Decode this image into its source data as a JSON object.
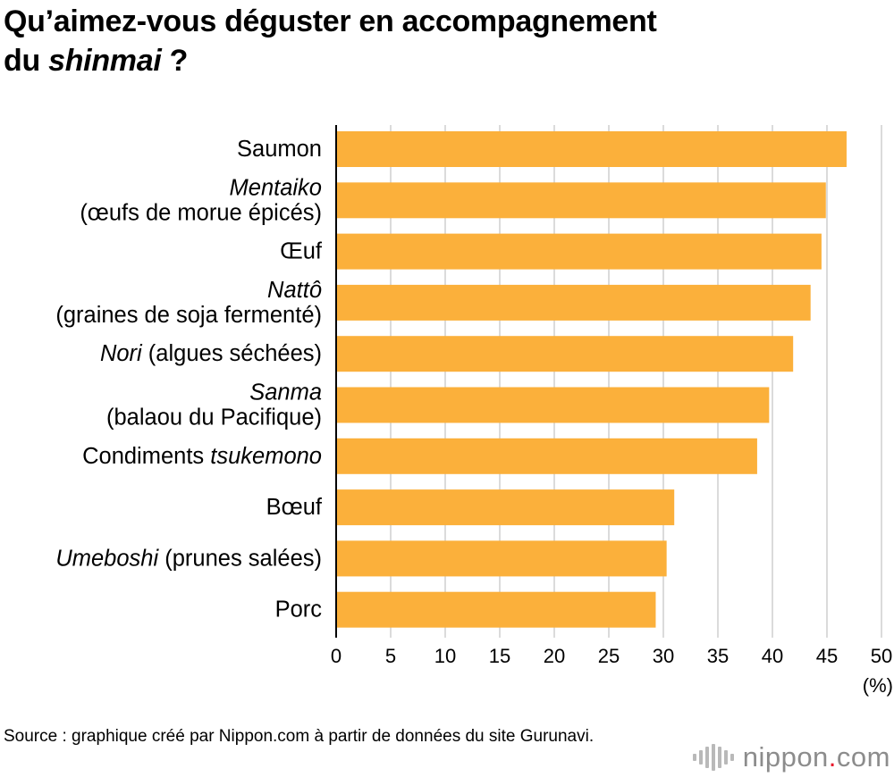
{
  "title": {
    "line1": "Qu’aimez-vous déguster en accompagnement",
    "line2_prefix": "du ",
    "line2_italic": "shinmai",
    "line2_suffix": " ?"
  },
  "chart_data": {
    "type": "bar",
    "orientation": "horizontal",
    "categories": [
      [
        {
          "t": "Saumon",
          "i": false
        }
      ],
      [
        {
          "t": "Mentaiko",
          "i": true
        },
        {
          "t": "\n(œufs de morue épicés)",
          "i": false
        }
      ],
      [
        {
          "t": "Œuf",
          "i": false
        }
      ],
      [
        {
          "t": "Nattô",
          "i": true
        },
        {
          "t": "\n(graines de soja fermenté)",
          "i": false
        }
      ],
      [
        {
          "t": "Nori",
          "i": true
        },
        {
          "t": " (algues séchées)",
          "i": false
        }
      ],
      [
        {
          "t": "Sanma",
          "i": true
        },
        {
          "t": "\n(balaou du Pacifique)",
          "i": false
        }
      ],
      [
        {
          "t": "Condiments ",
          "i": false
        },
        {
          "t": "tsukemono",
          "i": true
        }
      ],
      [
        {
          "t": "Bœuf",
          "i": false
        }
      ],
      [
        {
          "t": "Umeboshi",
          "i": true
        },
        {
          "t": " (prunes salées)",
          "i": false
        }
      ],
      [
        {
          "t": "Porc",
          "i": false
        }
      ]
    ],
    "values": [
      46.8,
      44.9,
      44.5,
      43.5,
      41.9,
      39.7,
      38.6,
      31.0,
      30.3,
      29.3
    ],
    "xlim": [
      0,
      50
    ],
    "ticks": [
      0,
      5,
      10,
      15,
      20,
      25,
      30,
      35,
      40,
      45,
      50
    ],
    "unit_label": "(%)",
    "grid": true,
    "bar_color": "#FBB03B",
    "grid_color": "#d2d2d2"
  },
  "source": "Source : graphique créé par Nippon.com à partir de données du site Gurunavi.",
  "logo": {
    "name": "nippon",
    "dot": ".",
    "suffix": "com",
    "dot_color": "#e8192c"
  }
}
